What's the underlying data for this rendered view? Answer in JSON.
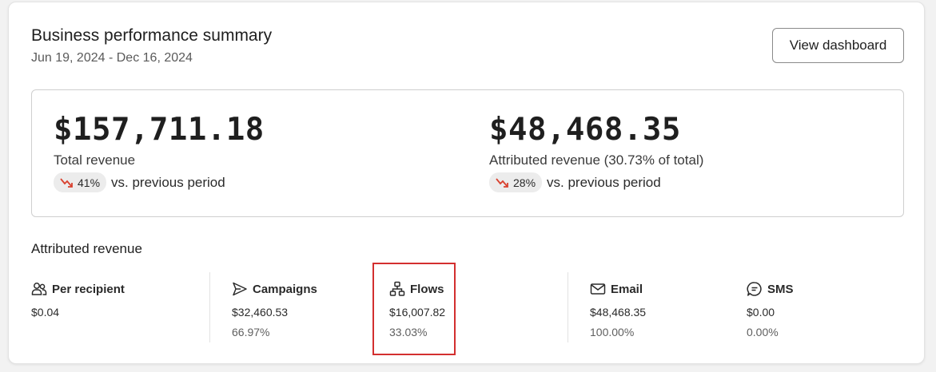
{
  "header": {
    "title": "Business performance summary",
    "date_range": "Jun 19, 2024 - Dec 16, 2024",
    "view_dashboard_label": "View dashboard"
  },
  "totals": [
    {
      "amount": "$157,711.18",
      "label": "Total revenue",
      "change_pct": "41%",
      "change_text": "vs. previous period",
      "trend": "down"
    },
    {
      "amount": "$48,468.35",
      "label": "Attributed revenue (30.73% of total)",
      "change_pct": "28%",
      "change_text": "vs. previous period",
      "trend": "down"
    }
  ],
  "attributed": {
    "title": "Attributed revenue",
    "channels": [
      {
        "label": "Per recipient",
        "icon": "people-icon",
        "value": "$0.04",
        "percent": ""
      },
      {
        "label": "Campaigns",
        "icon": "send-icon",
        "value": "$32,460.53",
        "percent": "66.97%"
      },
      {
        "label": "Flows",
        "icon": "flow-icon",
        "value": "$16,007.82",
        "percent": "33.03%"
      },
      {
        "label": "Email",
        "icon": "email-icon",
        "value": "$48,468.35",
        "percent": "100.00%"
      },
      {
        "label": "SMS",
        "icon": "sms-icon",
        "value": "$0.00",
        "percent": "0.00%"
      }
    ]
  },
  "colors": {
    "trend_down": "#d9412f",
    "highlight": "#d32f2f"
  }
}
